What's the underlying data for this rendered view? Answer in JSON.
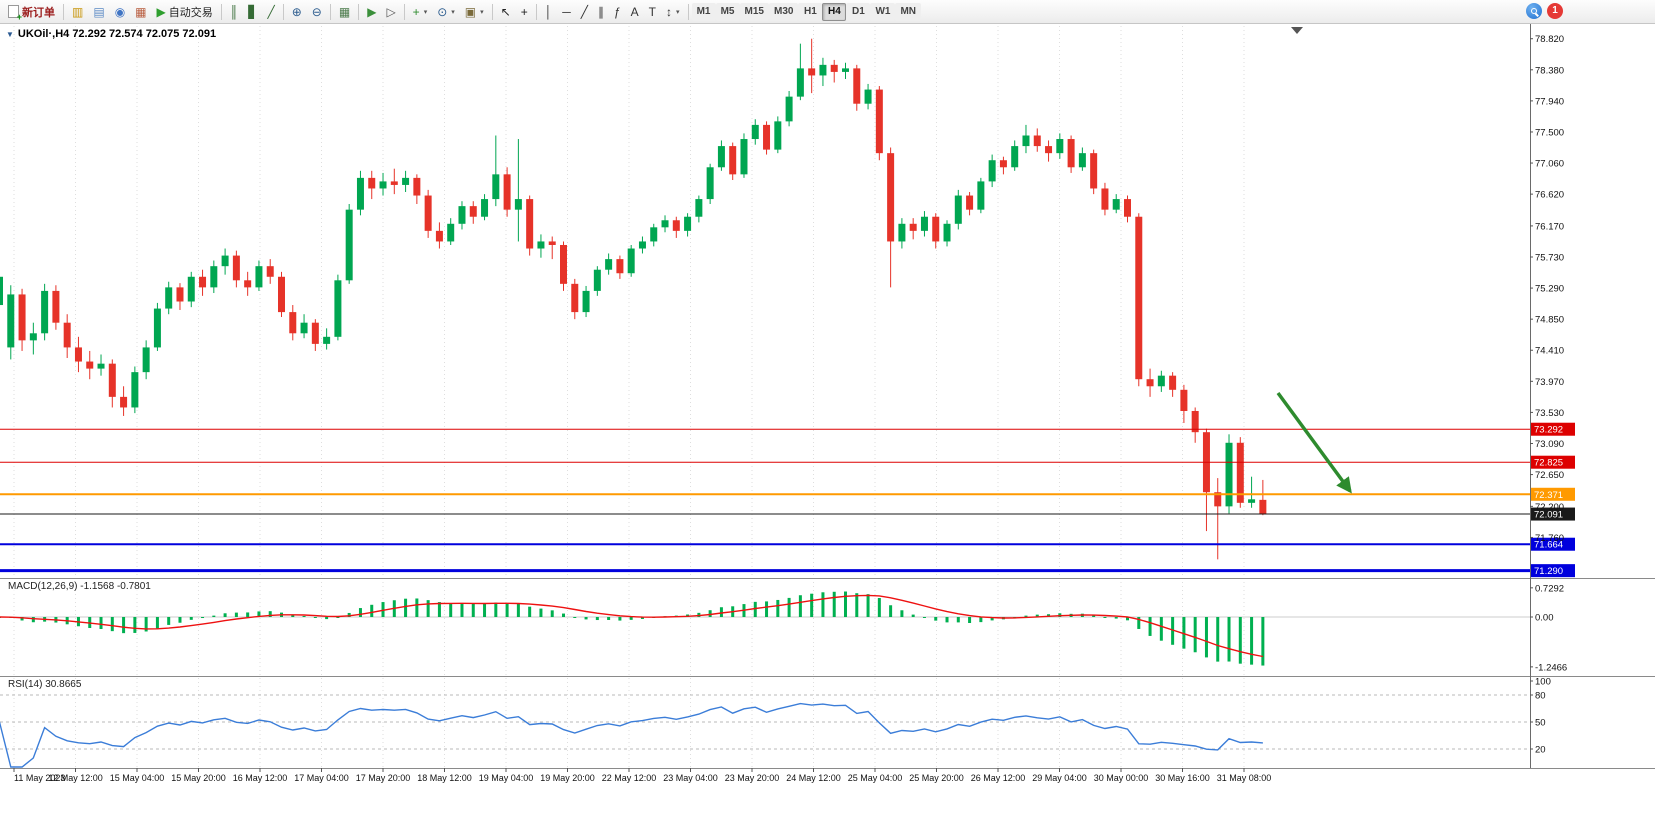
{
  "toolbar": {
    "new_order_label": "新订单",
    "auto_trading_label": "自动交易",
    "notification_count": "1",
    "left_icons": [
      {
        "name": "market-watch-icon",
        "glyph": "▥",
        "color": "#c8960c"
      },
      {
        "name": "data-window-icon",
        "glyph": "▤",
        "color": "#5b8ac5"
      },
      {
        "name": "navigator-icon",
        "glyph": "◉",
        "color": "#3f74c4"
      },
      {
        "name": "terminal-icon",
        "glyph": "▦",
        "color": "#b85c3e"
      }
    ],
    "chart_tools": [
      {
        "name": "bar-chart-icon",
        "glyph": "║",
        "color": "#356b35"
      },
      {
        "name": "candlestick-icon",
        "glyph": "▋",
        "color": "#356b35"
      },
      {
        "name": "line-chart-icon",
        "glyph": "╱",
        "color": "#356b35"
      },
      {
        "sep": true
      },
      {
        "name": "zoom-in-icon",
        "glyph": "⊕",
        "color": "#2d5d8f"
      },
      {
        "name": "zoom-out-icon",
        "glyph": "⊖",
        "color": "#2d5d8f"
      },
      {
        "sep": true
      },
      {
        "name": "tile-windows-icon",
        "glyph": "▦",
        "color": "#4a7a4a"
      },
      {
        "sep": true
      },
      {
        "name": "auto-scroll-icon",
        "glyph": "▶",
        "color": "#3a8f3a"
      },
      {
        "name": "chart-shift-icon",
        "glyph": "▷",
        "color": "#555555"
      },
      {
        "sep": true
      },
      {
        "name": "indicators-icon",
        "glyph": "+",
        "color": "#2e8b2e",
        "caret": true
      },
      {
        "name": "periods-icon",
        "glyph": "⊙",
        "color": "#2d5d8f",
        "caret": true
      },
      {
        "name": "templates-icon",
        "glyph": "▣",
        "color": "#7a6a3a",
        "caret": true
      },
      {
        "sep": true
      },
      {
        "name": "cursor-icon",
        "glyph": "↖",
        "color": "#222222"
      },
      {
        "name": "crosshair-icon",
        "glyph": "+",
        "color": "#222222"
      },
      {
        "sep": true
      },
      {
        "name": "vertical-line-icon",
        "glyph": "│",
        "color": "#333333"
      },
      {
        "name": "horizontal-line-icon",
        "glyph": "─",
        "color": "#333333"
      },
      {
        "name": "trendline-icon",
        "glyph": "╱",
        "color": "#333333"
      },
      {
        "name": "channel-icon",
        "glyph": "∥",
        "color": "#333333"
      },
      {
        "name": "fibonacci-icon",
        "glyph": "ƒ",
        "color": "#333333"
      },
      {
        "name": "text-icon",
        "glyph": "A",
        "color": "#333333"
      },
      {
        "name": "text-label-icon",
        "glyph": "T",
        "color": "#333333"
      },
      {
        "name": "arrows-icon",
        "glyph": "↕",
        "color": "#333333",
        "caret": true
      },
      {
        "sep": true
      }
    ],
    "timeframes": {
      "items": [
        "M1",
        "M5",
        "M15",
        "M30",
        "H1",
        "H4",
        "D1",
        "W1",
        "MN"
      ],
      "active": "H4"
    }
  },
  "chart": {
    "title": "UKOil·,H4 72.292 72.574 72.075 72.091",
    "price_axis_labels": [
      "78.820",
      "78.380",
      "77.940",
      "77.500",
      "77.060",
      "76.620",
      "76.170",
      "75.730",
      "75.290",
      "74.850",
      "74.410",
      "73.970",
      "73.530",
      "73.090",
      "72.650",
      "72.200",
      "71.760"
    ],
    "hlines": [
      {
        "price": 73.292,
        "label": "73.292",
        "color": "#dd0000",
        "width": 1
      },
      {
        "price": 72.825,
        "label": "72.825",
        "color": "#dd0000",
        "width": 1
      },
      {
        "price": 72.371,
        "label": "72.371",
        "color": "#ff9a00",
        "width": 2
      },
      {
        "price": 72.091,
        "label": "72.091",
        "color": "#1a1a1a",
        "width": 1
      },
      {
        "price": 71.664,
        "label": "71.664",
        "color": "#0000dd",
        "width": 2
      },
      {
        "price": 71.29,
        "label": "71.290",
        "color": "#0000dd",
        "width": 3
      }
    ],
    "colors": {
      "up": "#00a651",
      "down": "#e63329",
      "macd_histogram": "#00b050",
      "macd_signal": "#ee1111",
      "rsi_line": "#3b7dd8",
      "arrow": "#2e8b2e",
      "grid": "#dedede"
    }
  },
  "macd_panel": {
    "label": "MACD(12,26,9) -1.1568 -0.7801",
    "axis_labels": [
      "0.7292",
      "0.00",
      "-1.2466"
    ]
  },
  "rsi_panel": {
    "label": "RSI(14) 30.8665",
    "axis_labels": [
      "100",
      "80",
      "50",
      "20"
    ]
  },
  "time_axis": {
    "labels": [
      "11 May 2023",
      "12 May 12:00",
      "15 May 04:00",
      "15 May 20:00",
      "16 May 12:00",
      "17 May 04:00",
      "17 May 20:00",
      "18 May 12:00",
      "19 May 04:00",
      "19 May 20:00",
      "22 May 12:00",
      "23 May 04:00",
      "23 May 20:00",
      "24 May 12:00",
      "25 May 04:00",
      "25 May 20:00",
      "26 May 12:00",
      "29 May 04:00",
      "30 May 00:00",
      "30 May 16:00",
      "31 May 08:00"
    ]
  },
  "chart_data": {
    "type": "candlestick",
    "symbol": "UKOil",
    "timeframe": "H4",
    "current_ohlc": {
      "open": 72.292,
      "high": 72.574,
      "low": 72.075,
      "close": 72.091
    },
    "price_range": [
      71.2,
      79.0
    ],
    "horizontal_levels": [
      73.292,
      72.825,
      72.371,
      72.091,
      71.664,
      71.29
    ],
    "indicators": [
      {
        "name": "MACD",
        "params": [
          12,
          26,
          9
        ],
        "value": -1.1568,
        "signal": -0.7801
      },
      {
        "name": "RSI",
        "params": [
          14
        ],
        "value": 30.8665
      }
    ],
    "candles": [
      [
        75.05,
        75.5,
        74.95,
        75.45
      ],
      [
        74.45,
        75.33,
        74.28,
        75.2
      ],
      [
        75.2,
        75.28,
        74.4,
        74.55
      ],
      [
        74.55,
        74.8,
        74.35,
        74.65
      ],
      [
        74.65,
        75.35,
        74.55,
        75.25
      ],
      [
        75.25,
        75.33,
        74.7,
        74.8
      ],
      [
        74.8,
        74.92,
        74.3,
        74.45
      ],
      [
        74.45,
        74.6,
        74.1,
        74.25
      ],
      [
        74.25,
        74.4,
        74.0,
        74.15
      ],
      [
        74.15,
        74.35,
        74.05,
        74.22
      ],
      [
        74.22,
        74.28,
        73.6,
        73.75
      ],
      [
        73.75,
        73.9,
        73.48,
        73.6
      ],
      [
        73.6,
        74.18,
        73.52,
        74.1
      ],
      [
        74.1,
        74.55,
        74.0,
        74.45
      ],
      [
        74.45,
        75.08,
        74.4,
        75.0
      ],
      [
        75.0,
        75.38,
        74.92,
        75.3
      ],
      [
        75.3,
        75.36,
        74.98,
        75.1
      ],
      [
        75.1,
        75.52,
        75.02,
        75.45
      ],
      [
        75.45,
        75.55,
        75.18,
        75.3
      ],
      [
        75.3,
        75.68,
        75.22,
        75.6
      ],
      [
        75.6,
        75.85,
        75.48,
        75.75
      ],
      [
        75.75,
        75.82,
        75.3,
        75.4
      ],
      [
        75.4,
        75.52,
        75.18,
        75.3
      ],
      [
        75.3,
        75.68,
        75.25,
        75.6
      ],
      [
        75.6,
        75.7,
        75.35,
        75.45
      ],
      [
        75.45,
        75.52,
        74.88,
        74.95
      ],
      [
        74.95,
        75.05,
        74.55,
        74.65
      ],
      [
        74.65,
        74.92,
        74.58,
        74.8
      ],
      [
        74.8,
        74.85,
        74.4,
        74.5
      ],
      [
        74.5,
        74.72,
        74.42,
        74.6
      ],
      [
        74.6,
        75.48,
        74.55,
        75.4
      ],
      [
        75.4,
        76.48,
        75.35,
        76.4
      ],
      [
        76.4,
        76.95,
        76.32,
        76.85
      ],
      [
        76.85,
        76.95,
        76.55,
        76.7
      ],
      [
        76.7,
        76.92,
        76.6,
        76.8
      ],
      [
        76.8,
        76.98,
        76.62,
        76.75
      ],
      [
        76.75,
        76.95,
        76.65,
        76.85
      ],
      [
        76.85,
        76.9,
        76.48,
        76.6
      ],
      [
        76.6,
        76.68,
        76.0,
        76.1
      ],
      [
        76.1,
        76.22,
        75.85,
        75.95
      ],
      [
        75.95,
        76.28,
        75.9,
        76.2
      ],
      [
        76.2,
        76.52,
        76.12,
        76.45
      ],
      [
        76.45,
        76.52,
        76.2,
        76.3
      ],
      [
        76.3,
        76.62,
        76.25,
        76.55
      ],
      [
        76.55,
        77.45,
        76.45,
        76.9
      ],
      [
        76.9,
        77.0,
        76.3,
        76.4
      ],
      [
        76.4,
        77.4,
        75.95,
        76.55
      ],
      [
        76.55,
        76.6,
        75.75,
        75.85
      ],
      [
        75.85,
        76.05,
        75.72,
        75.95
      ],
      [
        75.95,
        76.02,
        75.7,
        75.9
      ],
      [
        75.9,
        75.95,
        75.25,
        75.35
      ],
      [
        75.35,
        75.42,
        74.85,
        74.95
      ],
      [
        74.95,
        75.32,
        74.88,
        75.25
      ],
      [
        75.25,
        75.6,
        75.18,
        75.55
      ],
      [
        75.55,
        75.78,
        75.48,
        75.7
      ],
      [
        75.7,
        75.75,
        75.42,
        75.5
      ],
      [
        75.5,
        75.9,
        75.45,
        75.85
      ],
      [
        75.85,
        76.02,
        75.78,
        75.95
      ],
      [
        75.95,
        76.2,
        75.88,
        76.15
      ],
      [
        76.15,
        76.32,
        76.08,
        76.25
      ],
      [
        76.25,
        76.3,
        76.0,
        76.1
      ],
      [
        76.1,
        76.35,
        76.02,
        76.3
      ],
      [
        76.3,
        76.6,
        76.22,
        76.55
      ],
      [
        76.55,
        77.05,
        76.48,
        77.0
      ],
      [
        77.0,
        77.38,
        76.95,
        77.3
      ],
      [
        77.3,
        77.35,
        76.82,
        76.9
      ],
      [
        76.9,
        77.48,
        76.85,
        77.4
      ],
      [
        77.4,
        77.68,
        77.32,
        77.6
      ],
      [
        77.6,
        77.65,
        77.18,
        77.25
      ],
      [
        77.25,
        77.72,
        77.2,
        77.65
      ],
      [
        77.65,
        78.08,
        77.58,
        78.0
      ],
      [
        78.0,
        78.75,
        77.95,
        78.4
      ],
      [
        78.4,
        78.82,
        78.05,
        78.3
      ],
      [
        78.3,
        78.55,
        78.15,
        78.45
      ],
      [
        78.45,
        78.52,
        78.2,
        78.35
      ],
      [
        78.35,
        78.48,
        78.25,
        78.4
      ],
      [
        78.4,
        78.45,
        77.8,
        77.9
      ],
      [
        77.9,
        78.18,
        77.82,
        78.1
      ],
      [
        78.1,
        78.15,
        77.1,
        77.2
      ],
      [
        77.2,
        77.28,
        75.3,
        75.95
      ],
      [
        75.95,
        76.28,
        75.85,
        76.2
      ],
      [
        76.2,
        76.28,
        75.98,
        76.1
      ],
      [
        76.1,
        76.38,
        76.02,
        76.3
      ],
      [
        76.3,
        76.35,
        75.85,
        75.95
      ],
      [
        75.95,
        76.25,
        75.88,
        76.2
      ],
      [
        76.2,
        76.68,
        76.12,
        76.6
      ],
      [
        76.6,
        76.65,
        76.32,
        76.4
      ],
      [
        76.4,
        76.85,
        76.35,
        76.8
      ],
      [
        76.8,
        77.18,
        76.72,
        77.1
      ],
      [
        77.1,
        77.15,
        76.9,
        77.0
      ],
      [
        77.0,
        77.38,
        76.95,
        77.3
      ],
      [
        77.3,
        77.6,
        77.2,
        77.45
      ],
      [
        77.45,
        77.55,
        77.22,
        77.3
      ],
      [
        77.3,
        77.38,
        77.08,
        77.2
      ],
      [
        77.2,
        77.48,
        77.12,
        77.4
      ],
      [
        77.4,
        77.45,
        76.92,
        77.0
      ],
      [
        77.0,
        77.28,
        76.95,
        77.2
      ],
      [
        77.2,
        77.25,
        76.62,
        76.7
      ],
      [
        76.7,
        76.78,
        76.32,
        76.4
      ],
      [
        76.4,
        76.62,
        76.35,
        76.55
      ],
      [
        76.55,
        76.6,
        76.22,
        76.3
      ],
      [
        76.3,
        76.35,
        73.9,
        74.0
      ],
      [
        74.0,
        74.15,
        73.75,
        73.9
      ],
      [
        73.9,
        74.12,
        73.82,
        74.05
      ],
      [
        74.05,
        74.1,
        73.75,
        73.85
      ],
      [
        73.85,
        73.92,
        73.38,
        73.55
      ],
      [
        73.55,
        73.6,
        73.1,
        73.25
      ],
      [
        73.25,
        73.3,
        71.85,
        72.4
      ],
      [
        72.4,
        72.6,
        71.45,
        72.2
      ],
      [
        72.2,
        73.22,
        72.1,
        73.1
      ],
      [
        73.1,
        73.18,
        72.18,
        72.25
      ],
      [
        72.25,
        72.62,
        72.18,
        72.3
      ],
      [
        72.292,
        72.574,
        72.075,
        72.091
      ]
    ]
  }
}
